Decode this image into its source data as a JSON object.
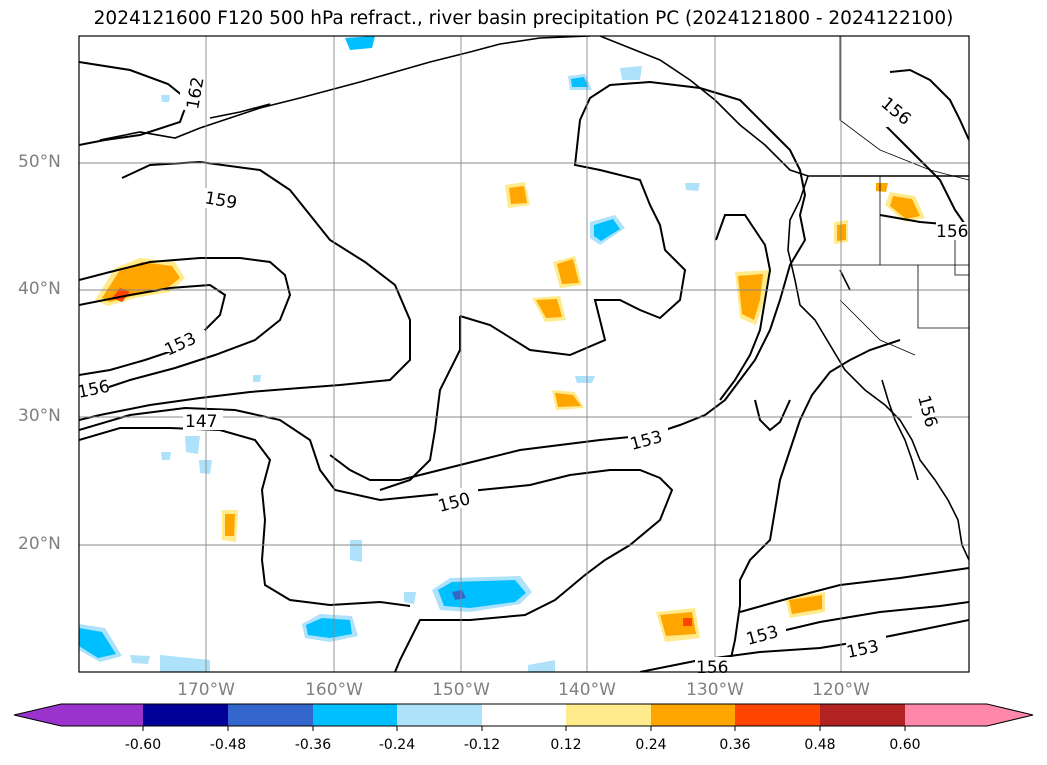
{
  "title": "2024121600 F120 500 hPa refract., river basin precipitation PC (2024121800 - 2024122100)",
  "map": {
    "lat_labels": [
      "50°N",
      "40°N",
      "30°N",
      "20°N"
    ],
    "lon_labels": [
      "170°W",
      "160°W",
      "150°W",
      "140°W",
      "130°W",
      "120°W"
    ],
    "contour_labels": [
      "162",
      "159",
      "153",
      "156",
      "147",
      "150",
      "153",
      "156",
      "153",
      "153",
      "156",
      "156",
      "156"
    ]
  },
  "colorbar": {
    "tick_labels": [
      "-0.60",
      "-0.48",
      "-0.36",
      "-0.24",
      "-0.12",
      "0.12",
      "0.24",
      "0.36",
      "0.48",
      "0.60"
    ],
    "colors": [
      "#9933cc",
      "#000099",
      "#3366cc",
      "#00bfff",
      "#aee2fa",
      "#ffffff",
      "#ffea8c",
      "#ffa500",
      "#ff4500",
      "#b22222",
      "#ff88aa"
    ]
  }
}
